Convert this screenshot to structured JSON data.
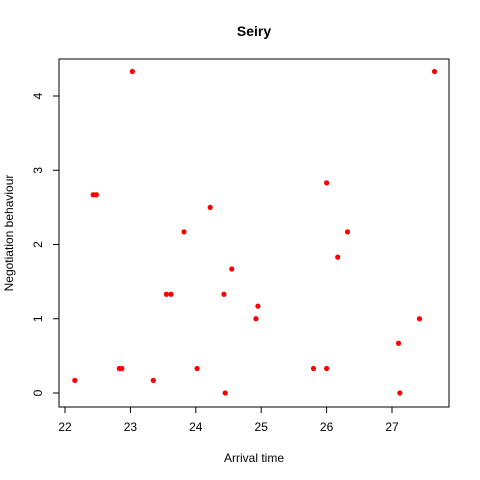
{
  "chart_data": {
    "type": "scatter",
    "title": "Seiry",
    "xlabel": "Arrival time",
    "ylabel": "Negotiation behaviour",
    "xlim": [
      22,
      27.7
    ],
    "ylim": [
      0,
      4.33
    ],
    "xticks": [
      22,
      23,
      24,
      25,
      26,
      27
    ],
    "yticks": [
      0,
      1,
      2,
      3,
      4
    ],
    "xtick_labels": [
      "22",
      "23",
      "24",
      "25",
      "26",
      "27"
    ],
    "ytick_labels": [
      "0",
      "1",
      "2",
      "3",
      "4"
    ],
    "grid": false,
    "point_color": "#ff0000",
    "series": [
      {
        "points": [
          {
            "x": 22.15,
            "y": 0.17
          },
          {
            "x": 22.43,
            "y": 2.67
          },
          {
            "x": 22.48,
            "y": 2.67
          },
          {
            "x": 22.83,
            "y": 0.33
          },
          {
            "x": 22.87,
            "y": 0.33
          },
          {
            "x": 23.03,
            "y": 4.33
          },
          {
            "x": 23.35,
            "y": 0.17
          },
          {
            "x": 23.55,
            "y": 1.33
          },
          {
            "x": 23.62,
            "y": 1.33
          },
          {
            "x": 23.82,
            "y": 2.17
          },
          {
            "x": 24.02,
            "y": 0.33
          },
          {
            "x": 24.22,
            "y": 2.5
          },
          {
            "x": 24.43,
            "y": 1.33
          },
          {
            "x": 24.45,
            "y": 0.0
          },
          {
            "x": 24.55,
            "y": 1.67
          },
          {
            "x": 24.92,
            "y": 1.0
          },
          {
            "x": 24.95,
            "y": 1.17
          },
          {
            "x": 25.8,
            "y": 0.33
          },
          {
            "x": 26.0,
            "y": 2.83
          },
          {
            "x": 26.0,
            "y": 0.33
          },
          {
            "x": 26.17,
            "y": 1.83
          },
          {
            "x": 26.32,
            "y": 2.17
          },
          {
            "x": 27.1,
            "y": 0.67
          },
          {
            "x": 27.12,
            "y": 0.0
          },
          {
            "x": 27.42,
            "y": 1.0
          },
          {
            "x": 27.65,
            "y": 4.33
          }
        ]
      }
    ]
  }
}
